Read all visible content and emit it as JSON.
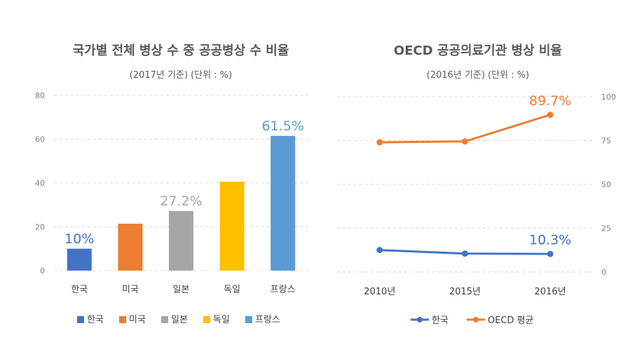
{
  "chart_data": [
    {
      "type": "bar",
      "title": "국가별 전체 병상 수 중 공공병상 수 비율",
      "subtitle": "(2017년 기준) (단위 : %)",
      "categories": [
        "한국",
        "미국",
        "일본",
        "독일",
        "프랑스"
      ],
      "values": [
        10,
        21.4,
        27.2,
        40.6,
        61.5
      ],
      "colors": [
        "#4472c4",
        "#ed7d31",
        "#a5a5a5",
        "#ffc000",
        "#5b9bd5"
      ],
      "labels": [
        "10%",
        "",
        "27.2%",
        "",
        "61.5%"
      ],
      "yticks": [
        "0",
        "20",
        "40",
        "60",
        "80"
      ],
      "ylim": [
        0,
        80
      ],
      "grid": true,
      "legend": "bottom"
    },
    {
      "type": "line",
      "title": "OECD 공공의료기관 병상 비율",
      "subtitle": "(2016년 기준) (단위 : %)",
      "x": [
        "2010년",
        "2015년",
        "2016년"
      ],
      "series": [
        {
          "name": "한국",
          "color": "#4472c4",
          "values": [
            12.5,
            10.5,
            10.3
          ],
          "end_label": "10.3%"
        },
        {
          "name": "OECD 평균",
          "color": "#ed7d31",
          "values": [
            74,
            74.5,
            89.7
          ],
          "end_label": "89.7%"
        }
      ],
      "yticks": [
        "0",
        "25",
        "50",
        "75",
        "100"
      ],
      "ylim": [
        0,
        100
      ],
      "grid": true,
      "legend": "bottom"
    }
  ]
}
